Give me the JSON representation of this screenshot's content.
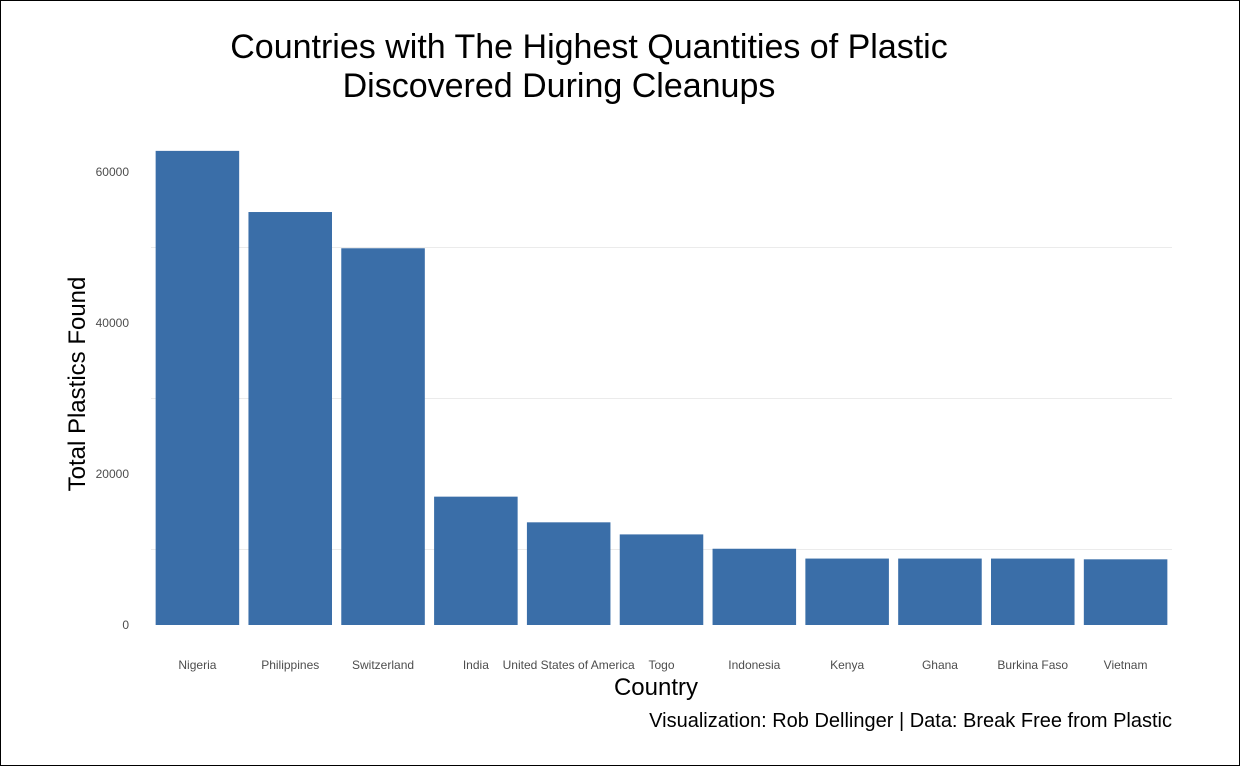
{
  "chart_data": {
    "type": "bar",
    "title": "Countries with The Highest Quantities of Plastic Discovered During Cleanups",
    "title_lines": [
      "Countries with The Highest Quantities of Plastic",
      "Discovered During Cleanups"
    ],
    "xlabel": "Country",
    "ylabel": "Total Plastics Found",
    "caption": "Visualization: Rob Dellinger | Data:  Break Free from Plastic",
    "categories": [
      "Nigeria",
      "Philippines",
      "Switzerland",
      "India",
      "United States of America",
      "Togo",
      "Indonesia",
      "Kenya",
      "Ghana",
      "Burkina Faso",
      "Vietnam"
    ],
    "values": [
      62800,
      54700,
      49900,
      17000,
      13600,
      12000,
      10100,
      8800,
      8800,
      8800,
      8700
    ],
    "yticks": [
      0,
      20000,
      40000,
      60000
    ],
    "ylim": [
      0,
      65300
    ],
    "grid": true,
    "bar_color": "#3a6ea8",
    "grid_color": "#ebebeb"
  }
}
